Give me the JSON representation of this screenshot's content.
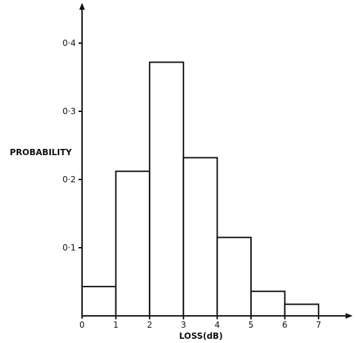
{
  "chart_data": {
    "type": "bar",
    "variant": "histogram",
    "bin_edges": [
      0,
      1,
      2,
      3,
      4,
      5,
      6,
      7
    ],
    "values": [
      0.043,
      0.212,
      0.372,
      0.232,
      0.115,
      0.036,
      0.017
    ],
    "title": "",
    "xlabel": "LOSS(dB)",
    "ylabel": "PROBABILITY",
    "xticks": [
      "0",
      "1",
      "2",
      "3",
      "4",
      "5",
      "6",
      "7"
    ],
    "yticks": [
      "0·1",
      "0·2",
      "0·3",
      "0·4"
    ],
    "ytick_values": [
      0.1,
      0.2,
      0.3,
      0.4
    ],
    "xlim": [
      0,
      7.8
    ],
    "ylim": [
      0,
      0.45
    ],
    "grid": false,
    "legend": "none",
    "colors": {
      "bar_fill": "#ffffff",
      "stroke": "#111111"
    }
  }
}
